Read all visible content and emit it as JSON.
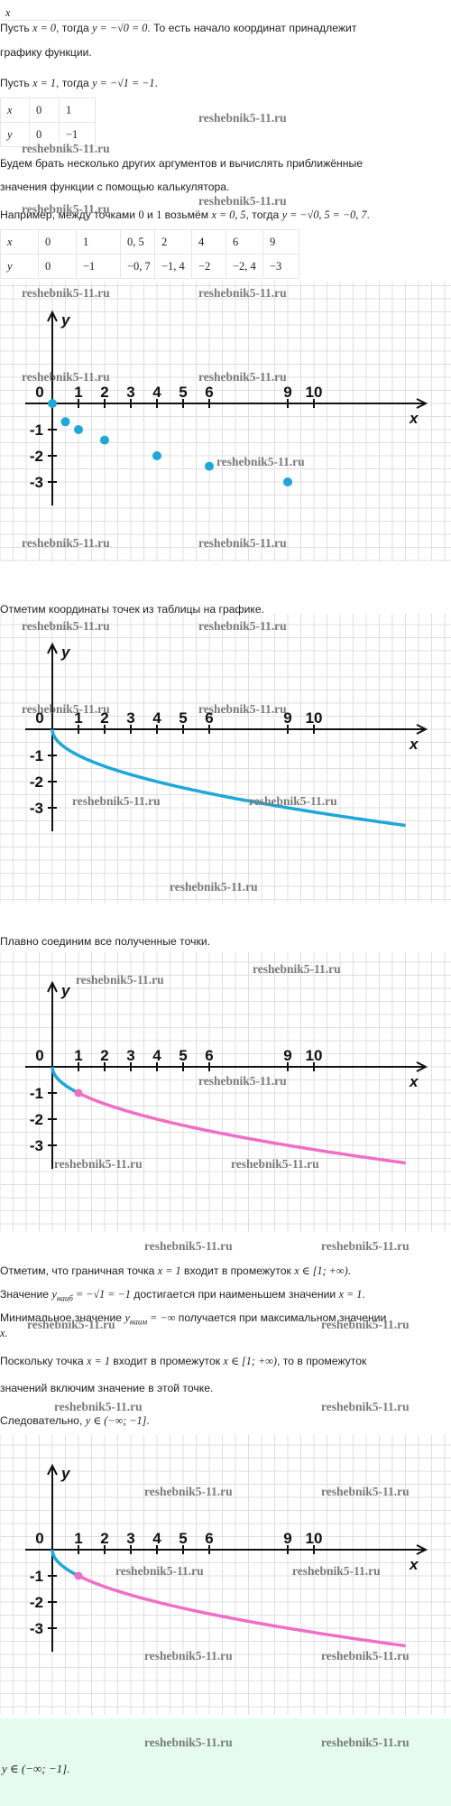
{
  "watermark": "reshebnik5-11.ru",
  "colors": {
    "curve": "#1ea7d8",
    "highlight": "#ee6fc5",
    "grid": "#dfdfdf",
    "answer_bg": "#e6fbef"
  },
  "text": {
    "x_top": "x",
    "l1": [
      "Пусть ",
      "x = 0",
      ", тогда ",
      "y = −√0 = 0",
      ". То есть начало координат принадлежит"
    ],
    "l2": "графику функции.",
    "l3": [
      "Пусть ",
      "x = 1",
      ", тогда ",
      "y = −√1 = −1",
      "."
    ],
    "l4": "Будем брать несколько других аргументов и вычислять приближённые",
    "l5": "значения функции с помощью калькулятора.",
    "l6": [
      "Например, между точками ",
      "0",
      " и ",
      "1",
      " возьмём ",
      "x = 0, 5",
      ", тогда ",
      "y = −√0, 5 = −0, 7",
      "."
    ],
    "l7": "Отметим координаты точек из таблицы на графике.",
    "l8": "Плавно соединим все полученные точки.",
    "l9": [
      "Отметим, что граничная точка ",
      "x = 1",
      " входит в промежуток ",
      "x ∈ [1; +∞)",
      "."
    ],
    "l10": [
      "Значение ",
      "y",
      "наиб",
      " = −√1 = −1",
      " достигается при наименьшем значении ",
      "x = 1",
      "."
    ],
    "l11": [
      "Минимальное значение ",
      "y",
      "наим",
      " = −∞",
      " получается при максимальном значении"
    ],
    "l12": "x.",
    "l13": [
      "Поскольку точка ",
      "x = 1",
      " входит в промежуток ",
      "x ∈ [1; +∞)",
      ", то в промежуток"
    ],
    "l14": "значений включим значение в этой точке.",
    "l15": [
      "Следовательно, ",
      "y ∈ (−∞; −1]",
      "."
    ],
    "answer": "y ∈ (−∞; −1]."
  },
  "table1": {
    "rows": [
      [
        "x",
        "0",
        "1"
      ],
      [
        "y",
        "0",
        "−1"
      ]
    ]
  },
  "table2": {
    "rows": [
      [
        "x",
        "0",
        "1",
        "0, 5",
        "2",
        "4",
        "6",
        "9"
      ],
      [
        "y",
        "0",
        "−1",
        "−0, 7",
        "−1, 4",
        "−2",
        "−2, 4",
        "−3"
      ]
    ]
  },
  "chart_data": [
    {
      "type": "scatter",
      "xlabel": "x",
      "ylabel": "y",
      "x_ticks": [
        "0",
        "1",
        "2",
        "3",
        "4",
        "5",
        "6",
        "9",
        "10"
      ],
      "y_ticks": [
        "-1",
        "-2",
        "-3"
      ],
      "points": [
        [
          0,
          0
        ],
        [
          0.5,
          -0.7
        ],
        [
          1,
          -1
        ],
        [
          2,
          -1.4
        ],
        [
          4,
          -2
        ],
        [
          6,
          -2.4
        ],
        [
          9,
          -3
        ]
      ]
    },
    {
      "type": "line",
      "xlabel": "x",
      "ylabel": "y",
      "x_ticks": [
        "0",
        "1",
        "2",
        "3",
        "4",
        "5",
        "6",
        "9",
        "10"
      ],
      "y_ticks": [
        "-1",
        "-2",
        "-3"
      ],
      "function": "y = -sqrt(x)",
      "x_range": [
        0,
        13.5
      ]
    },
    {
      "type": "line",
      "xlabel": "x",
      "ylabel": "y",
      "x_ticks": [
        "0",
        "1",
        "2",
        "3",
        "4",
        "5",
        "6",
        "9",
        "10"
      ],
      "y_ticks": [
        "-1",
        "-2",
        "-3"
      ],
      "function": "y = -sqrt(x)",
      "x_range": [
        0,
        13.5
      ],
      "highlight_from_x": 1,
      "marked_point": [
        1,
        -1
      ]
    },
    {
      "type": "line",
      "xlabel": "x",
      "ylabel": "y",
      "x_ticks": [
        "0",
        "1",
        "2",
        "3",
        "4",
        "5",
        "6",
        "9",
        "10"
      ],
      "y_ticks": [
        "-1",
        "-2",
        "-3"
      ],
      "function": "y = -sqrt(x)",
      "x_range": [
        0,
        13.5
      ],
      "highlight_from_x": 1,
      "marked_point": [
        1,
        -1
      ]
    }
  ]
}
